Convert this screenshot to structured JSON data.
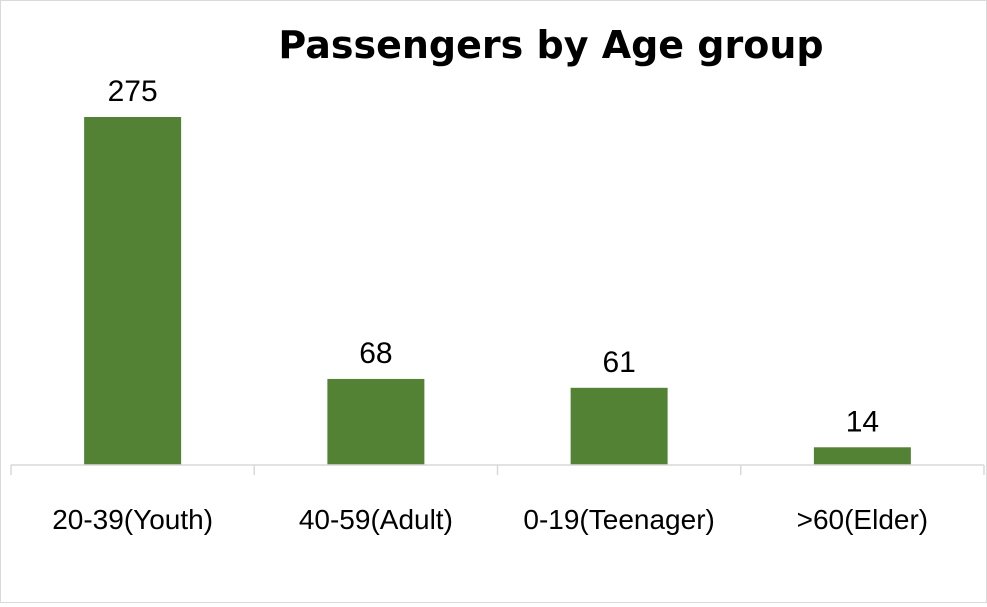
{
  "chart_data": {
    "type": "bar",
    "title": "Passengers by Age group",
    "categories": [
      "20-39(Youth)",
      "40-59(Adult)",
      "0-19(Teenager)",
      ">60(Elder)"
    ],
    "values": [
      275,
      68,
      61,
      14
    ],
    "data_labels": [
      "275",
      "68",
      "61",
      "14"
    ],
    "ylim": [
      0,
      275
    ],
    "grid": false,
    "legend": "none",
    "bar_color": "#548235",
    "axis_color": "#d9d9d9"
  }
}
